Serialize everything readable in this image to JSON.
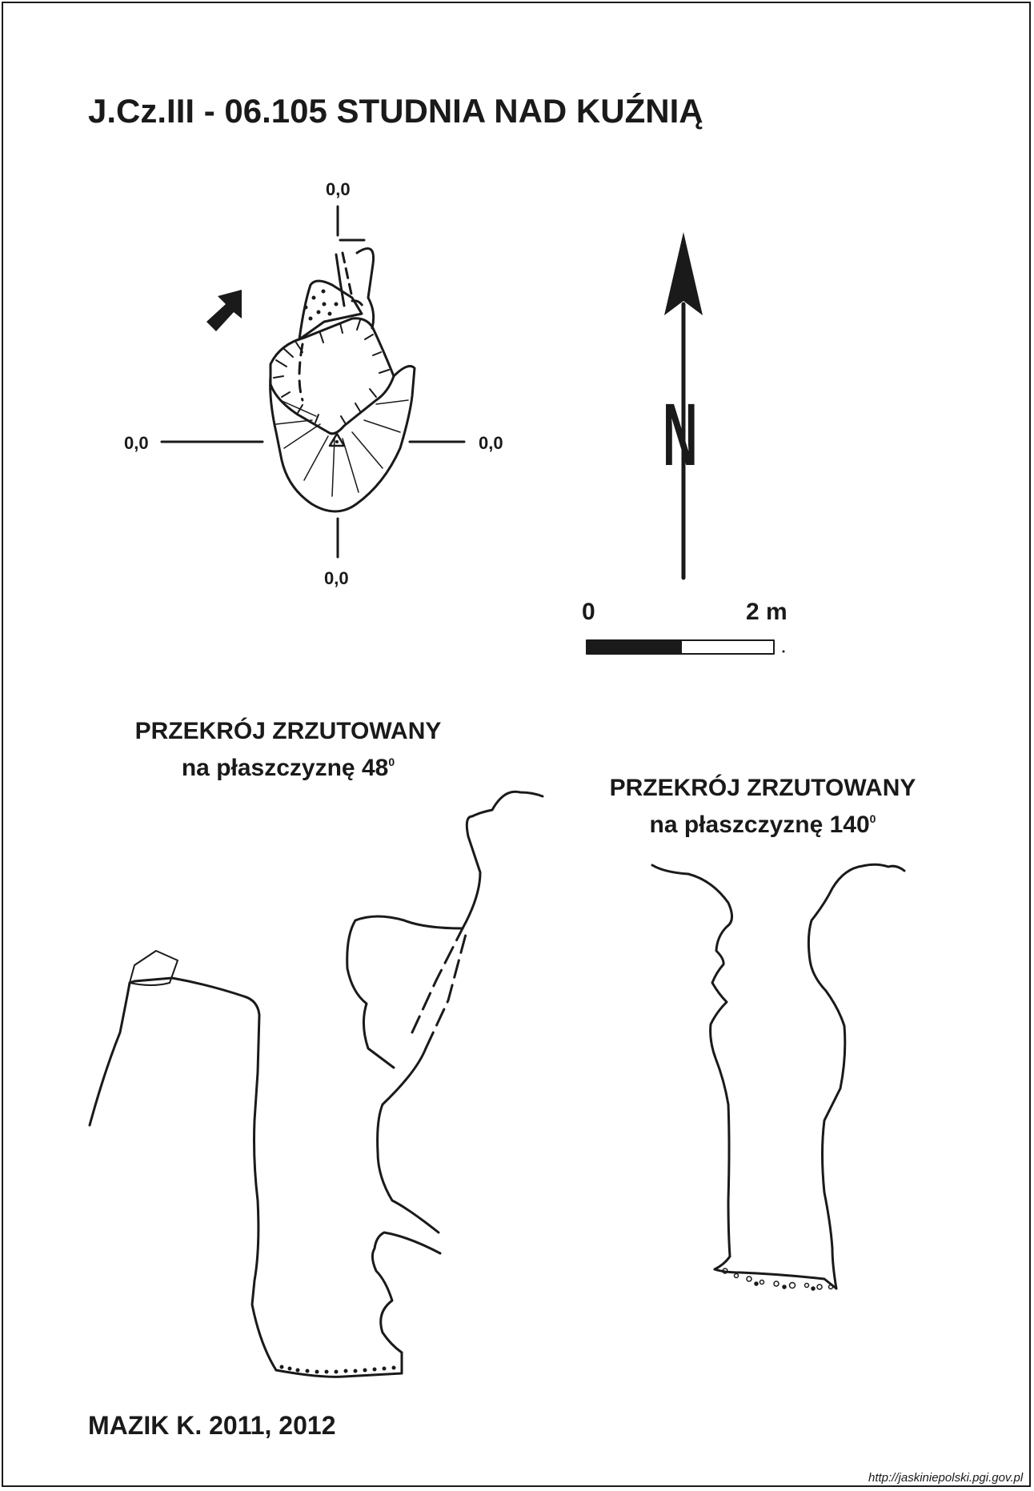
{
  "title": "J.Cz.III - 06.105  STUDNIA NAD KUŹNIĄ",
  "plan": {
    "coord_top": "0,0",
    "coord_left": "0,0",
    "coord_right": "0,0",
    "coord_bottom": "0,0",
    "entrance_arrow_icon": "entrance-arrow-icon",
    "survey_point_icon": "triangle-survey-point-icon"
  },
  "north_arrow": {
    "letter": "N"
  },
  "scale_bar": {
    "start_label": "0",
    "end_label": "2 m"
  },
  "sections": [
    {
      "title_line1": "PRZEKRÓJ ZRZUTOWANY",
      "title_line2": "na płaszczyznę 48",
      "degree": "0"
    },
    {
      "title_line1": "PRZEKRÓJ ZRZUTOWANY",
      "title_line2": "na płaszczyznę 140",
      "degree": "0"
    }
  ],
  "author": "MAZIK K. 2011, 2012",
  "source": "http://jaskiniepolski.pgi.gov.pl"
}
